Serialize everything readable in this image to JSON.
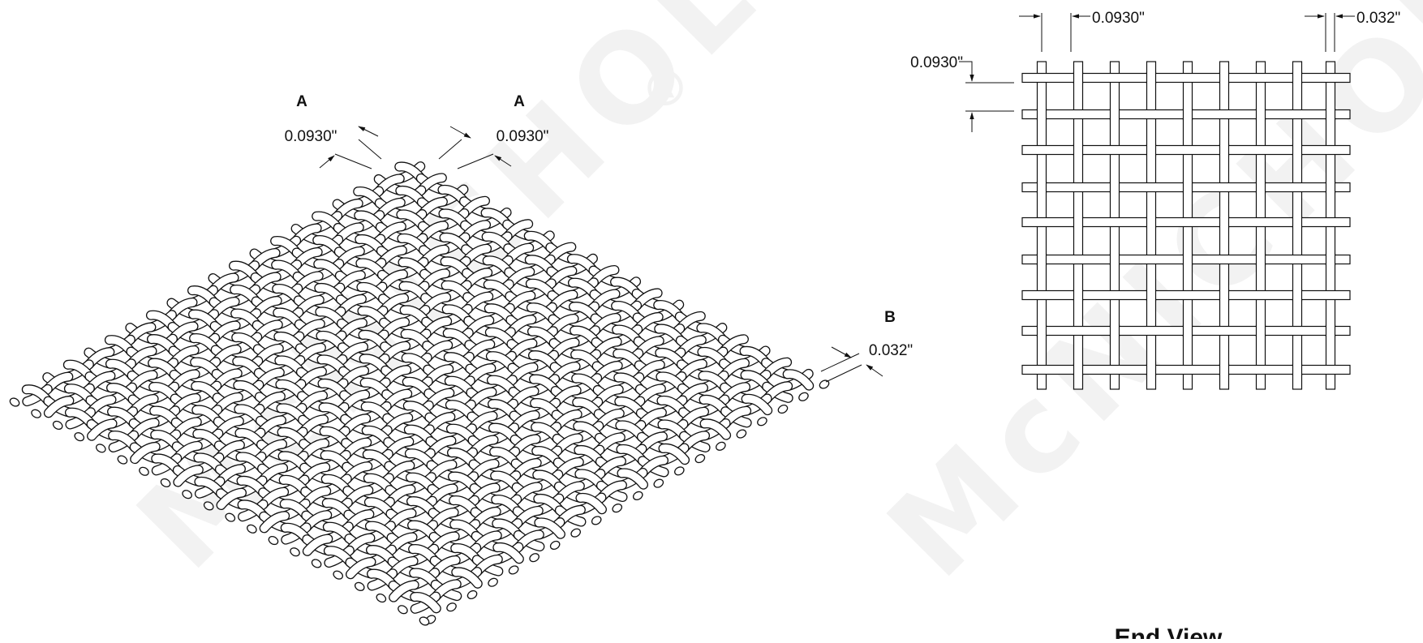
{
  "watermark": {
    "text": "McNICHOLS",
    "mark": "®",
    "color": "#f2f2f2"
  },
  "isometric_view": {
    "callout_a_left": {
      "letter": "A",
      "value": "0.0930\""
    },
    "callout_a_right": {
      "letter": "A",
      "value": "0.0930\""
    },
    "callout_b": {
      "letter": "B",
      "value": "0.032\""
    },
    "wire_color": "#ffffff",
    "stroke_color": "#111111"
  },
  "end_view": {
    "caption": "End View",
    "dim_top_opening": "0.0930\"",
    "dim_top_wire": "0.032\"",
    "dim_left_opening": "0.0930\""
  }
}
